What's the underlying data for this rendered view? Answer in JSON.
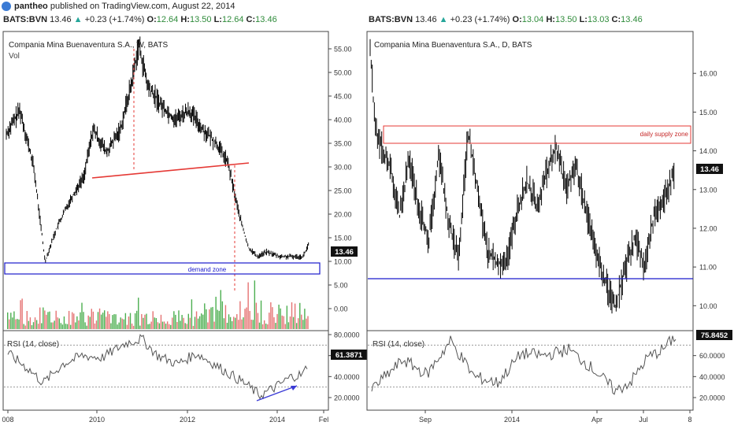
{
  "header": {
    "user": "pantheo",
    "published": "published on TradingView.com, August 22, 2014"
  },
  "left": {
    "ticker": "BATS:BVN",
    "last": "13.46",
    "change": "+0.23 (+1.74%)",
    "o_label": "O:",
    "o": "12.64",
    "h_label": "H:",
    "h": "13.50",
    "l_label": "L:",
    "l": "12.64",
    "c_label": "C:",
    "c": "13.46",
    "title": "Compania Mina Buenaventura S.A., W, BATS",
    "vol_label": "Vol",
    "price_badge": "13.46",
    "zone_label": "demand zone",
    "rsi_label": "RSI (14, close)",
    "rsi_badge": "61.3871",
    "x_ticks": [
      "008",
      "2010",
      "2012",
      "2014",
      "Fel"
    ],
    "price_ticks": [
      "55.00",
      "50.00",
      "45.00",
      "40.00",
      "35.00",
      "30.00",
      "25.00",
      "20.00",
      "15.00",
      "10.00",
      "5.00",
      "0.00"
    ],
    "rsi_ticks": [
      "80.0000",
      "60.0000",
      "40.0000",
      "20.0000"
    ]
  },
  "right": {
    "ticker": "BATS:BVN",
    "last": "13.46",
    "change": "+0.23 (+1.74%)",
    "o_label": "O:",
    "o": "13.04",
    "h_label": "H:",
    "h": "13.50",
    "l_label": "L:",
    "l": "13.03",
    "c_label": "C:",
    "c": "13.46",
    "title": "Compania Mina Buenaventura S.A., D, BATS",
    "price_badge": "13.46",
    "zone_label": "daily supply zone",
    "rsi_label": "RSI (14, close)",
    "rsi_badge": "75.8452",
    "x_ticks": [
      "Sep",
      "2014",
      "Apr",
      "Jul",
      "8"
    ],
    "price_ticks": [
      "16.00",
      "15.00",
      "14.00",
      "13.00",
      "12.00",
      "11.00",
      "10.00"
    ],
    "rsi_ticks": [
      "60.0000",
      "40.0000",
      "20.0000"
    ]
  },
  "colors": {
    "up": "#26a69a",
    "price_line": "#000000",
    "trendline": "#e53935",
    "zone": "#1a1acc",
    "supply": "#e53935",
    "vol_up": "#4caf50",
    "vol_down": "#e57373",
    "rsi": "#555555",
    "rsi_arrow": "#3b3bd6"
  },
  "chart_data": [
    {
      "type": "line",
      "title": "Compania Mina Buenaventura S.A., W, BATS",
      "series": [
        {
          "x": [
            2008.0,
            2008.3,
            2008.6,
            2008.85,
            2009.1,
            2009.4,
            2009.7,
            2009.9,
            2010.2,
            2010.5,
            2010.75,
            2010.9,
            2011.1,
            2011.4,
            2011.7,
            2012.0,
            2012.3,
            2012.6,
            2012.85,
            2013.1,
            2013.3,
            2013.5,
            2013.7,
            2014.0,
            2014.25,
            2014.5,
            2014.62
          ],
          "values": [
            37,
            42,
            30,
            10,
            17,
            23,
            28,
            38,
            33,
            38,
            48,
            56,
            47,
            43,
            40,
            42,
            38,
            35,
            31,
            20,
            13,
            11,
            12,
            11,
            11,
            11,
            13.46
          ]
        }
      ],
      "xlim": [
        2008.0,
        2014.85
      ],
      "ylim": [
        -2,
        58
      ]
    },
    {
      "type": "line",
      "title": "Compania Mina Buenaventura S.A., D, BATS",
      "series": [
        {
          "x": [
            0,
            5,
            10,
            20,
            30,
            40,
            50,
            60,
            70,
            80,
            90,
            100,
            110,
            120,
            130,
            140,
            150,
            160,
            170,
            180,
            190,
            200,
            210,
            220,
            230,
            240,
            250,
            260,
            270,
            280,
            290,
            300,
            310
          ],
          "values": [
            16.8,
            14.6,
            14.2,
            13.6,
            12.3,
            13.8,
            12.5,
            11.7,
            13.9,
            12.2,
            11.2,
            14.5,
            12.9,
            11.4,
            11.1,
            11.2,
            12.5,
            13.2,
            12.6,
            13.4,
            14.1,
            13.0,
            13.6,
            12.5,
            11.4,
            10.6,
            10.0,
            10.9,
            11.8,
            11.0,
            12.4,
            12.8,
            13.46
          ]
        }
      ],
      "xlim": [
        0,
        315
      ],
      "ylim": [
        9.6,
        17.0
      ]
    }
  ]
}
